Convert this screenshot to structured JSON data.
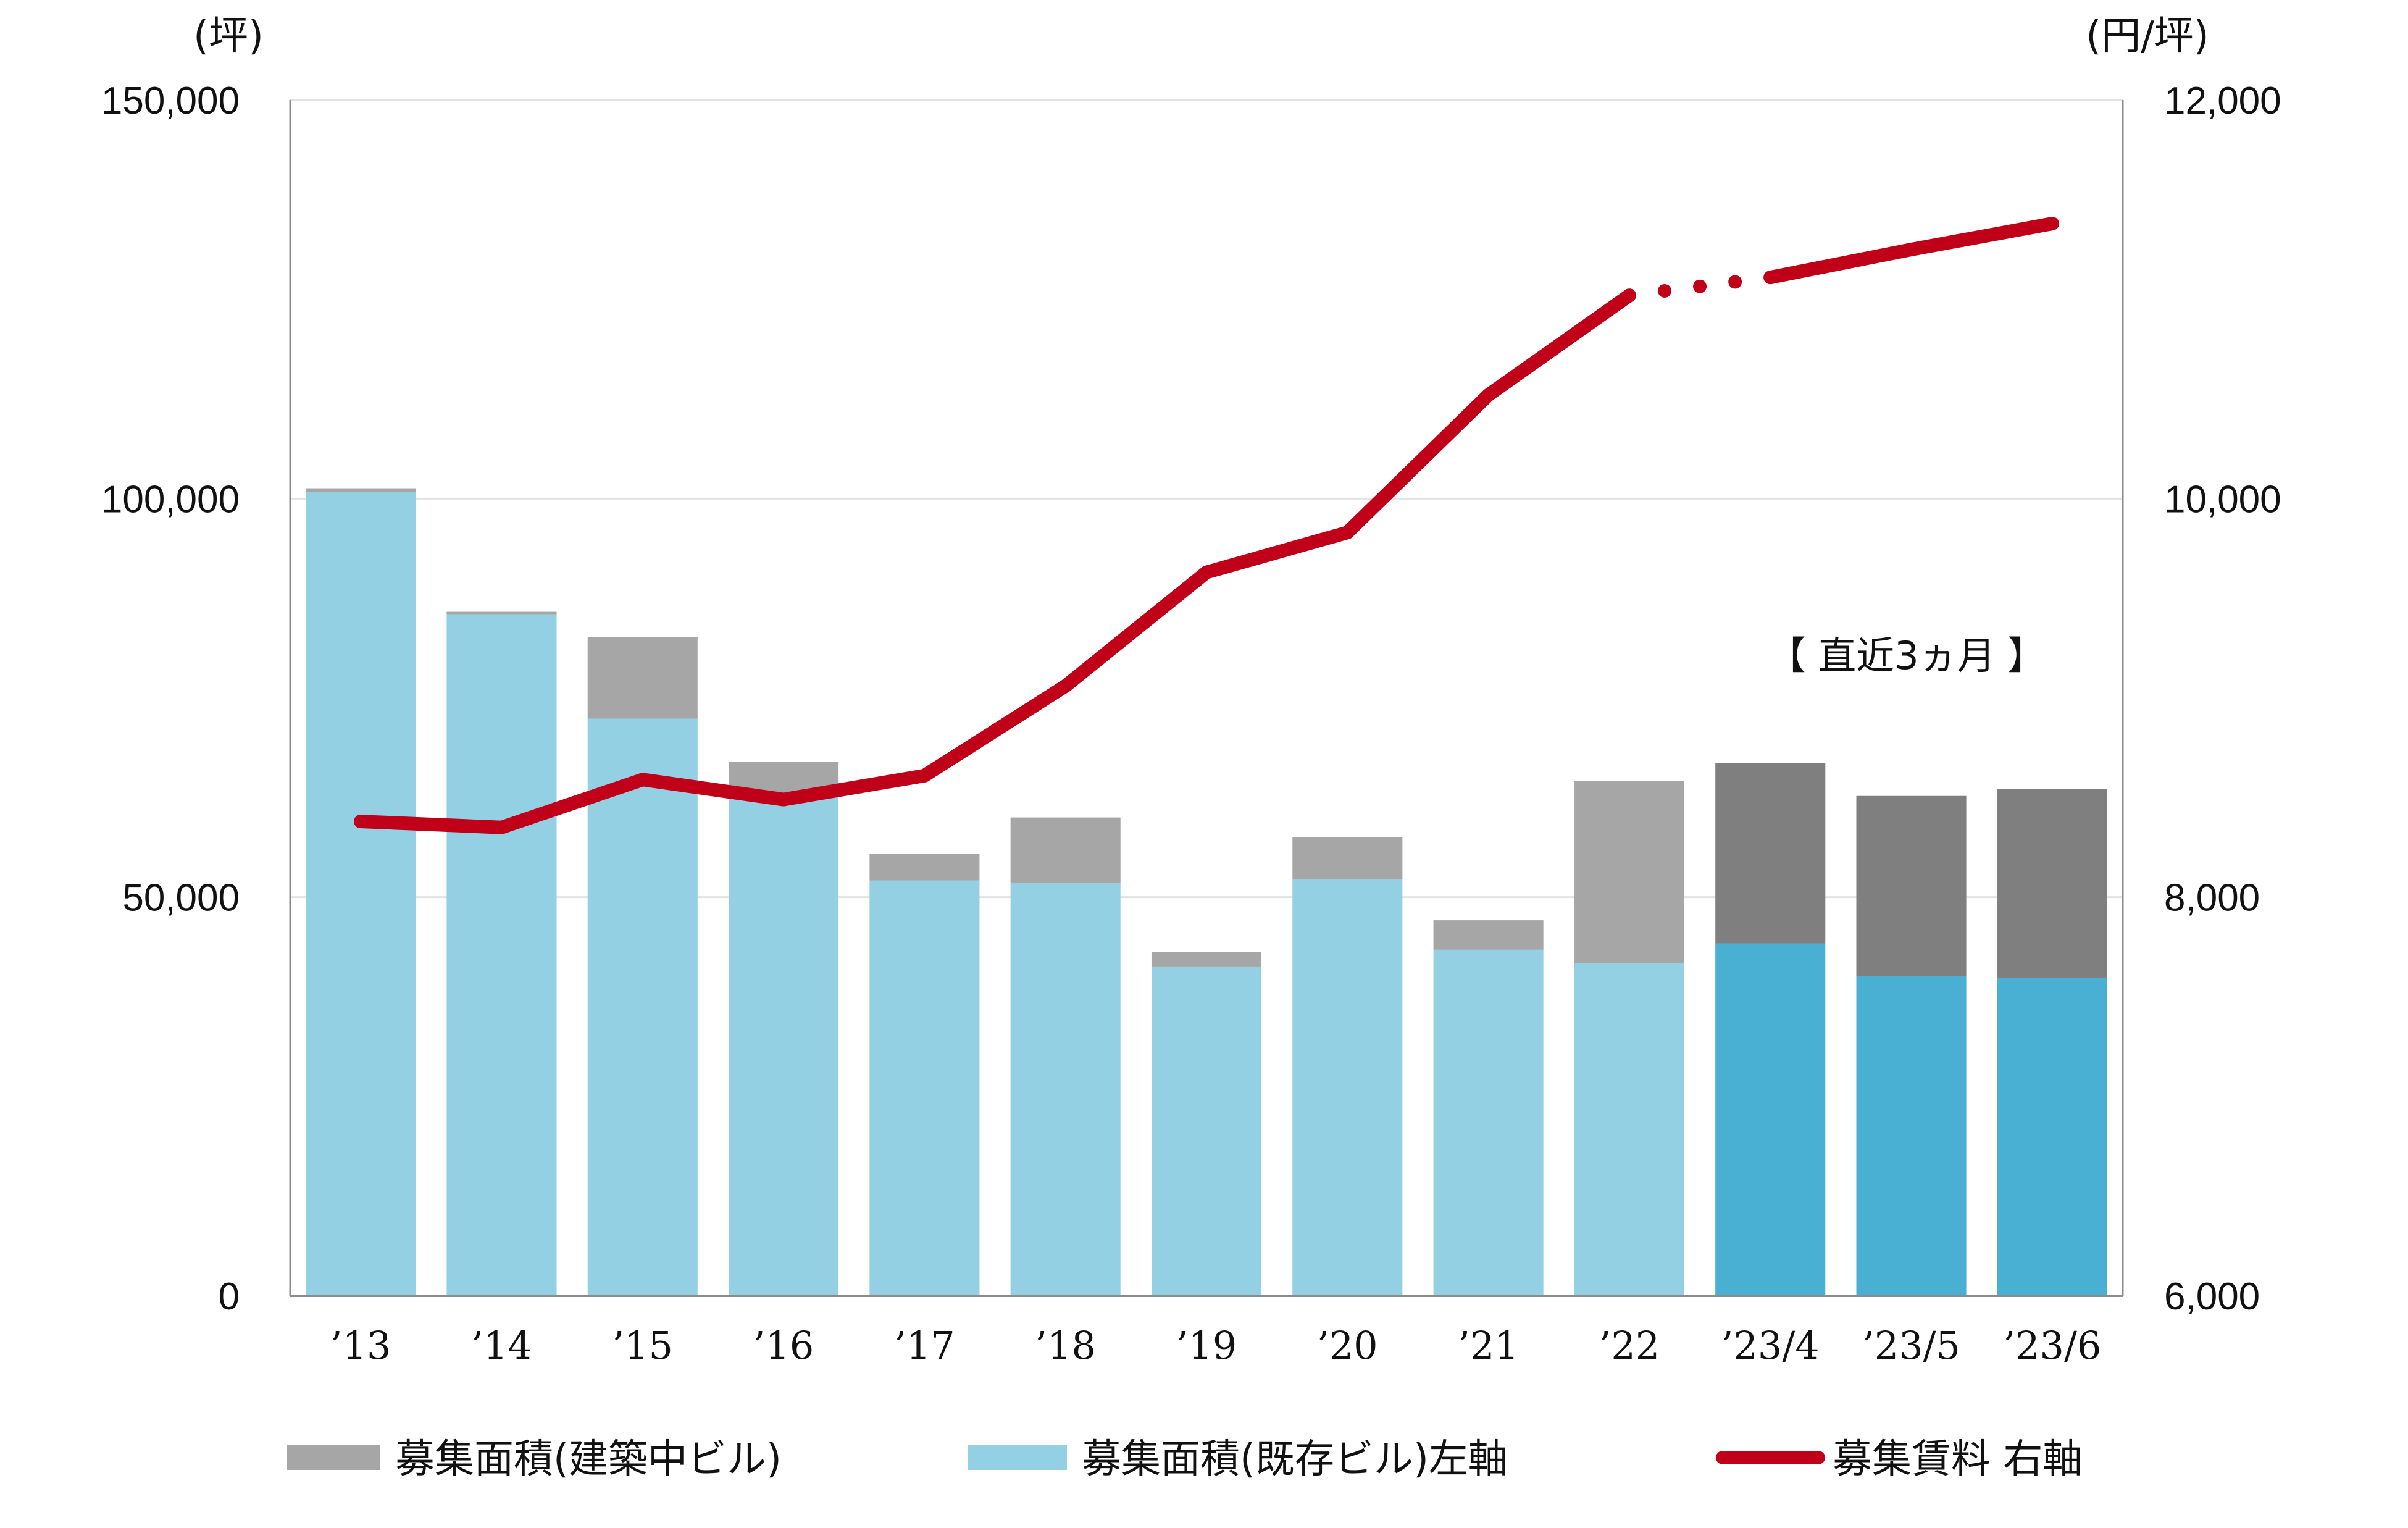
{
  "chart_data": {
    "type": "bar",
    "categories": [
      "’13",
      "’14",
      "’15",
      "’16",
      "’17",
      "’18",
      "’19",
      "’20",
      "’21",
      "’22",
      "’23/4",
      "’23/5",
      "’23/6"
    ],
    "series": [
      {
        "name": "募集面積(既存ビル)左軸",
        "axis": "left",
        "kind": "bar",
        "color": "#93D0E3",
        "recent_color": "#4AB0D3",
        "values": [
          100800,
          85500,
          72400,
          62500,
          52100,
          51800,
          41300,
          52200,
          43400,
          41700,
          44200,
          40100,
          39900
        ]
      },
      {
        "name": "募集面積(建築中ビル)",
        "axis": "left",
        "kind": "bar",
        "color": "#A6A6A6",
        "recent_color": "#7F7F7F",
        "values": [
          500,
          300,
          10200,
          4500,
          3300,
          8200,
          1800,
          5300,
          3700,
          22900,
          22600,
          22600,
          23700
        ]
      },
      {
        "name": "募集賃料 右軸",
        "axis": "right",
        "kind": "line",
        "color": "#C00018",
        "values": [
          8380,
          8350,
          8590,
          8490,
          8610,
          9060,
          9630,
          9830,
          10520,
          11020,
          11110,
          11250,
          11380
        ],
        "dotted_segment": [
          "’22",
          "’23/4"
        ]
      }
    ],
    "left_axis": {
      "unit": "(坪)",
      "ylim": [
        0,
        150000
      ],
      "ticks": [
        "0",
        "50,000",
        "100,000",
        "150,000"
      ]
    },
    "right_axis": {
      "unit": "(円/坪)",
      "ylim": [
        6000,
        12000
      ],
      "ticks": [
        "6,000",
        "8,000",
        "10,000",
        "12,000"
      ]
    },
    "annotation": "【 直近3ヵ月 】",
    "recent_categories": [
      "’23/4",
      "’23/5",
      "’23/6"
    ],
    "grid": true,
    "legend_position": "bottom",
    "legend": [
      {
        "label": "募集面積(建築中ビル)",
        "marker": "bar",
        "color": "#A6A6A6"
      },
      {
        "label": "募集面積(既存ビル)左軸",
        "marker": "bar",
        "color": "#93D0E3"
      },
      {
        "label": "募集賃料 右軸",
        "marker": "line",
        "color": "#C00018"
      }
    ]
  }
}
